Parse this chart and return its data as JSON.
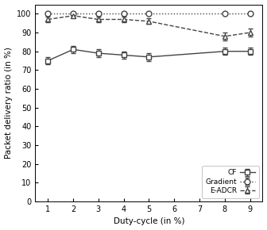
{
  "x": [
    1,
    2,
    3,
    4,
    5,
    8,
    9
  ],
  "CF_y": [
    75,
    81,
    79,
    78,
    77,
    80,
    80
  ],
  "CF_err": [
    2,
    2,
    2,
    2,
    2,
    2,
    2
  ],
  "Grad_y": [
    100,
    100,
    100,
    100,
    100,
    100,
    100
  ],
  "Grad_err": [
    0.3,
    0.3,
    0.3,
    0.3,
    0.3,
    0.3,
    0.3
  ],
  "EADCR_y": [
    97,
    99,
    97,
    97,
    96,
    88,
    90
  ],
  "EADCR_err": [
    1.5,
    1,
    1.5,
    1.5,
    1.5,
    2,
    2
  ],
  "xlabel": "Duty-cycle (in %)",
  "ylabel": "Packet delivery ratio (in %)",
  "xlim": [
    0.5,
    9.5
  ],
  "ylim": [
    0,
    105
  ],
  "yticks": [
    0,
    10,
    20,
    30,
    40,
    50,
    60,
    70,
    80,
    90,
    100
  ],
  "xticks": [
    1,
    2,
    3,
    4,
    5,
    6,
    7,
    8,
    9
  ],
  "legend_labels": [
    "CF",
    "Gradient",
    "E-ADCR"
  ],
  "color": "#444444",
  "background_color": "#ffffff"
}
